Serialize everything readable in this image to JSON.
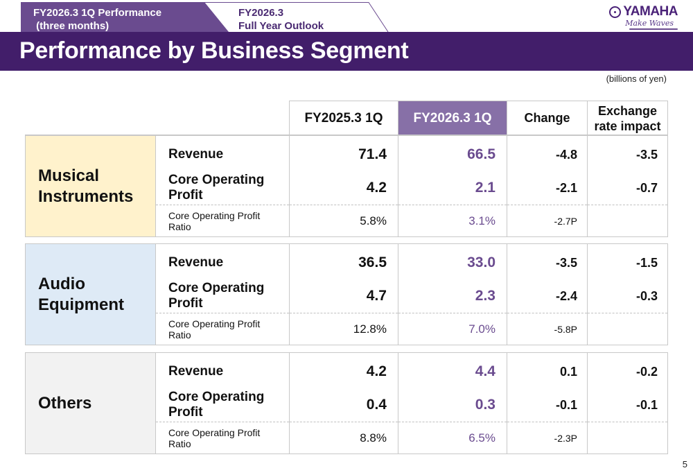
{
  "tabs": [
    {
      "line1": "FY2026.3 1Q Performance",
      "line2": " (three months)",
      "active": true
    },
    {
      "line1": "FY2026.3",
      "line2": "Full Year Outlook",
      "active": false
    }
  ],
  "logo": {
    "brand": "YAMAHA",
    "tagline": "Make Waves",
    "icon": "tuning-fork-emblem-icon"
  },
  "title": "Performance by Business Segment",
  "unit_note": "(billions of yen)",
  "colors": {
    "title_bar": "#421e6a",
    "highlight_column": "#8770a7",
    "highlight_text": "#6a4b8f",
    "musical_instruments_bg": "#fff2cc",
    "audio_equipment_bg": "#deeaf6",
    "others_bg": "#f2f2f2"
  },
  "columns": [
    {
      "label": "FY2025.3 1Q"
    },
    {
      "label": "FY2026.3 1Q"
    },
    {
      "label": "Change"
    },
    {
      "label": "Exchange rate impact"
    }
  ],
  "segments": [
    {
      "name": "Musical Instruments",
      "rows": [
        {
          "label": "Revenue",
          "values": [
            "71.4",
            "66.5",
            "-4.8",
            "-3.5"
          ]
        },
        {
          "label": "Core Operating Profit",
          "values": [
            "4.2",
            "2.1",
            "-2.1",
            "-0.7"
          ]
        },
        {
          "label": "Core Operating Profit Ratio",
          "values": [
            "5.8%",
            "3.1%",
            "-2.7P",
            ""
          ]
        }
      ]
    },
    {
      "name": "Audio Equipment",
      "rows": [
        {
          "label": "Revenue",
          "values": [
            "36.5",
            "33.0",
            "-3.5",
            "-1.5"
          ]
        },
        {
          "label": "Core Operating Profit",
          "values": [
            "4.7",
            "2.3",
            "-2.4",
            "-0.3"
          ]
        },
        {
          "label": "Core Operating Profit Ratio",
          "values": [
            "12.8%",
            "7.0%",
            "-5.8P",
            ""
          ]
        }
      ]
    },
    {
      "name": "Others",
      "rows": [
        {
          "label": "Revenue",
          "values": [
            "4.2",
            "4.4",
            "0.1",
            "-0.2"
          ]
        },
        {
          "label": "Core Operating Profit",
          "values": [
            "0.4",
            "0.3",
            "-0.1",
            "-0.1"
          ]
        },
        {
          "label": "Core Operating Profit Ratio",
          "values": [
            "8.8%",
            "6.5%",
            "-2.3P",
            ""
          ]
        }
      ]
    }
  ],
  "page_number": "5"
}
